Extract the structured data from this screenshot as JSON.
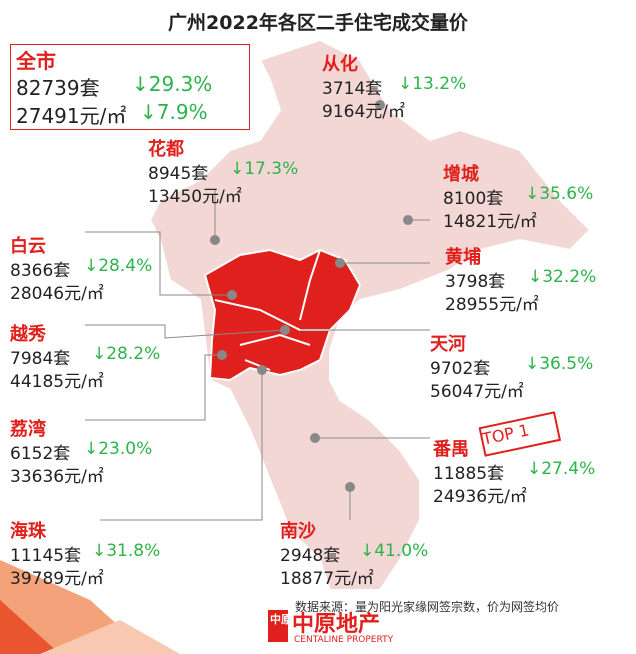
{
  "header": {
    "title": "广州2022年各区二手住宅成交量价"
  },
  "total": {
    "name": "全市",
    "volume": "82739套",
    "volume_change": "↓29.3%",
    "price": "27491元/㎡",
    "price_change": "↓7.9%"
  },
  "districts": [
    {
      "name": "从化",
      "volume": "3714套",
      "change": "↓13.2%",
      "price": "9164元/㎡"
    },
    {
      "name": "花都",
      "volume": "8945套",
      "change": "↓17.3%",
      "price": "13450元/㎡"
    },
    {
      "name": "增城",
      "volume": "8100套",
      "change": "↓35.6%",
      "price": "14821元/㎡"
    },
    {
      "name": "白云",
      "volume": "8366套",
      "change": "↓28.4%",
      "price": "28046元/㎡"
    },
    {
      "name": "黄埔",
      "volume": "3798套",
      "change": "↓32.2%",
      "price": "28955元/㎡"
    },
    {
      "name": "越秀",
      "volume": "7984套",
      "change": "↓28.2%",
      "price": "44185元/㎡"
    },
    {
      "name": "天河",
      "volume": "9702套",
      "change": "↓36.5%",
      "price": "56047元/㎡"
    },
    {
      "name": "荔湾",
      "volume": "6152套",
      "change": "↓23.0%",
      "price": "33636元/㎡"
    },
    {
      "name": "番禺",
      "volume": "11885套",
      "change": "↓27.4%",
      "price": "24936元/㎡"
    },
    {
      "name": "海珠",
      "volume": "11145套",
      "change": "↓31.8%",
      "price": "39789元/㎡"
    },
    {
      "name": "南沙",
      "volume": "2948套",
      "change": "↓41.0%",
      "price": "18877元/㎡"
    }
  ],
  "stamp": "TOP 1",
  "footer": {
    "source": "数据来源：量为阳光家缘网签宗数，价为网签均价",
    "logo_mark": "中原",
    "logo": "中原地产",
    "logo_sub": "CENTALINE PROPERTY"
  }
}
